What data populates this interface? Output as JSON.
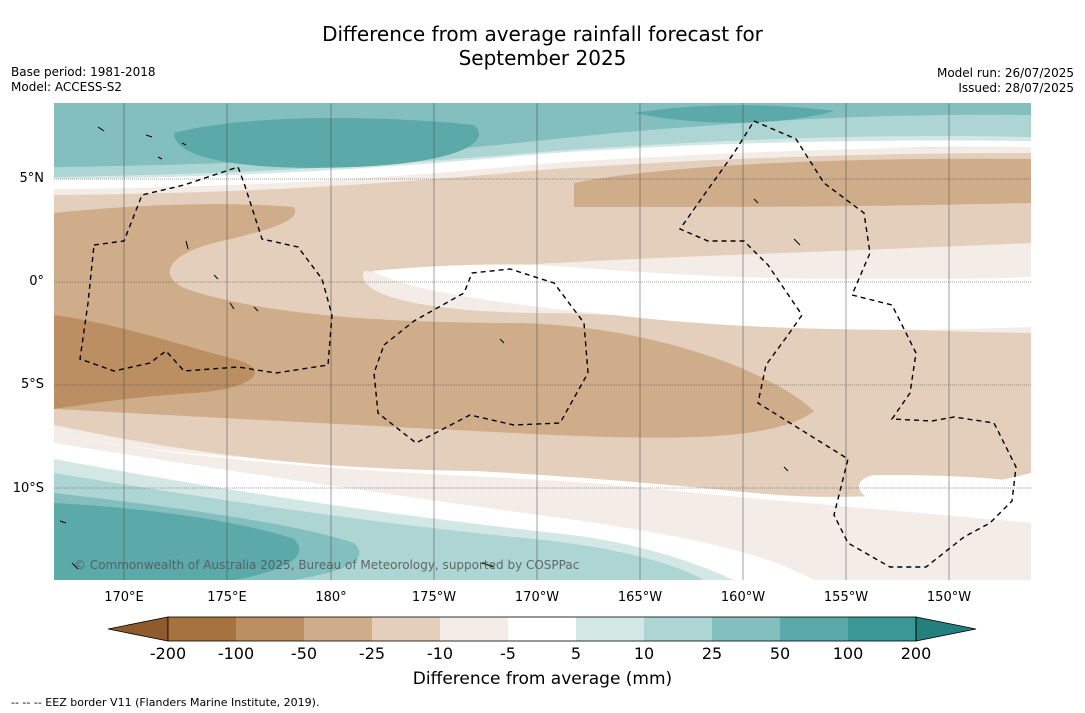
{
  "title": {
    "line1": "Difference from average rainfall forecast for",
    "line2": "September 2025"
  },
  "meta_left": {
    "base_period": "Base period: 1981-2018",
    "model": "Model: ACCESS-S2"
  },
  "meta_right": {
    "model_run": "Model run: 26/07/2025",
    "issued": "Issued: 28/07/2025"
  },
  "map": {
    "copyright": "© Commonwealth of Australia 2025, Bureau of Meteorology, supported by COSPPac",
    "lat_labels": [
      "5°N",
      "0°",
      "5°S",
      "10°S"
    ],
    "lon_labels": [
      "170°E",
      "175°E",
      "180°",
      "175°W",
      "170°W",
      "165°W",
      "160°W",
      "155°W",
      "150°W"
    ]
  },
  "colorbar": {
    "title": "Difference from average (mm)",
    "tick_labels": [
      "-200",
      "-100",
      "-50",
      "-25",
      "-10",
      "-5",
      "5",
      "10",
      "25",
      "50",
      "100",
      "200"
    ],
    "colors": [
      "#a6723d",
      "#bb8f62",
      "#d0ad8a",
      "#e3cfbc",
      "#f4ece6",
      "#ffffff",
      "#d3e8e5",
      "#acd5d3",
      "#83bfbe",
      "#5ca9aa",
      "#399895"
    ],
    "under_color": "#8f5a2c",
    "over_color": "#24807c"
  },
  "footnote": "--  --  -- EEZ border V11 (Flanders Marine Institute, 2019)."
}
